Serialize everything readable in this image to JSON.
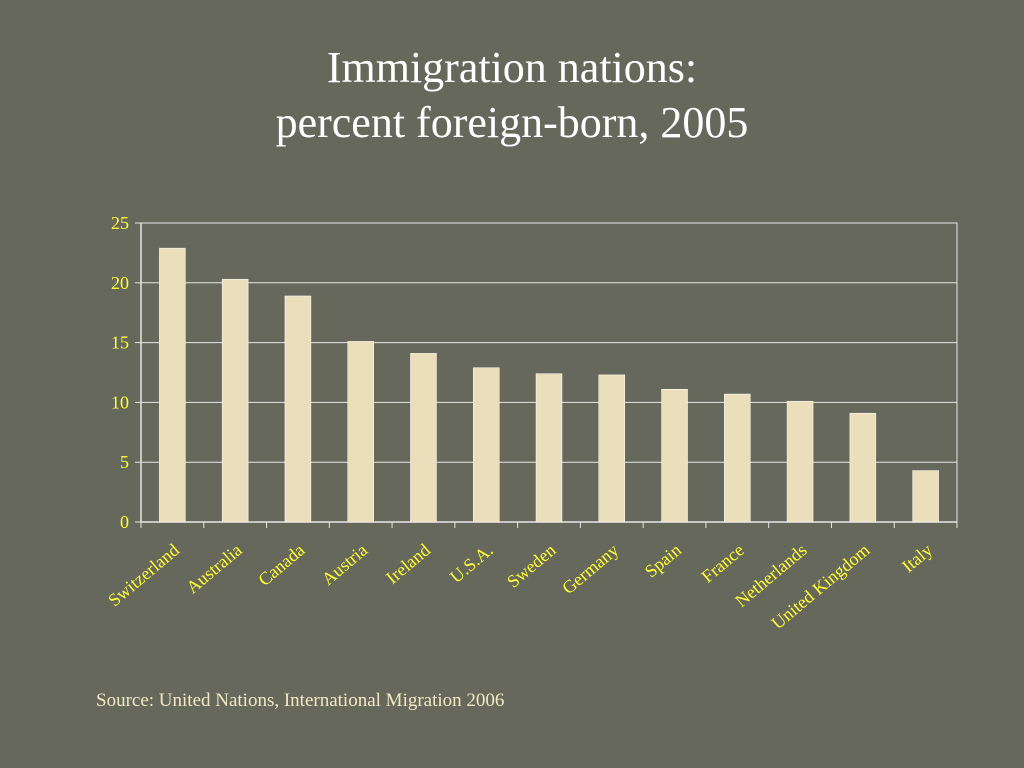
{
  "slide": {
    "title_line1": "Immigration nations:",
    "title_line2": "percent foreign-born, 2005",
    "source": "Source: United Nations, International Migration 2006"
  },
  "colors": {
    "background": "#66685c",
    "bar_fill": "#ebdfbb",
    "tick_label": "#ffff33",
    "grid": "#e6e6e6",
    "title": "#ffffff"
  },
  "chart_data": {
    "type": "bar",
    "title": "Immigration nations: percent foreign-born, 2005",
    "xlabel": "",
    "ylabel": "",
    "categories": [
      "Switzerland",
      "Australia",
      "Canada",
      "Austria",
      "Ireland",
      "U.S.A.",
      "Sweden",
      "Germany",
      "Spain",
      "France",
      "Netherlands",
      "United Kingdom",
      "Italy"
    ],
    "values": [
      22.9,
      20.3,
      18.9,
      15.1,
      14.1,
      12.9,
      12.4,
      12.3,
      11.1,
      10.7,
      10.1,
      9.1,
      4.3
    ],
    "ylim": [
      0,
      25
    ],
    "yticks": [
      0,
      5,
      10,
      15,
      20,
      25
    ],
    "grid": true,
    "legend": "none"
  }
}
